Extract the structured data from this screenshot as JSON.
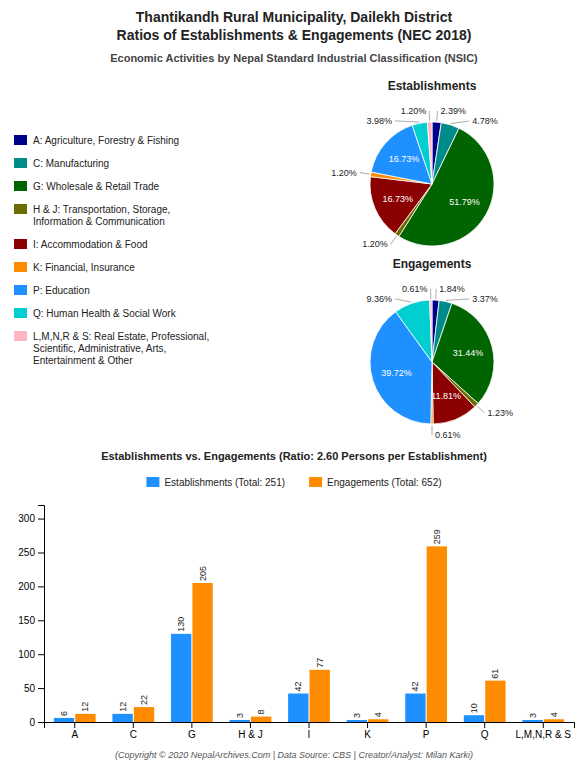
{
  "title": "Thantikandh Rural Municipality, Dailekh District\nRatios of Establishments & Engagements (NEC 2018)",
  "subtitle": "Economic Activities by Nepal Standard Industrial Classification (NSIC)",
  "footer": "(Copyright © 2020 NepalArchives.Com | Data Source: CBS | Creator/Analyst: Milan Karki)",
  "chart_data": [
    {
      "type": "pie",
      "title": "Establishments",
      "categories": [
        "A: Agriculture, Forestry & Fishing",
        "C: Manufacturing",
        "G: Wholesale & Retail Trade",
        "H & J: Transportation, Storage,\nInformation & Communication",
        "I: Accommodation & Food",
        "K: Financial, Insurance",
        "P: Education",
        "Q: Human Health & Social Work",
        "L,M,N,R & S: Real Estate, Professional,\nScientific, Administrative, Arts,\nEntertainment & Other"
      ],
      "values": [
        2.39,
        4.78,
        51.79,
        1.2,
        16.73,
        1.2,
        16.73,
        3.98,
        1.2
      ],
      "value_labels": [
        "2.39%",
        "4.78%",
        "51.79%",
        "1.20%",
        "16.73%",
        "1.20%",
        "16.73%",
        "3.98%",
        "1.20%"
      ],
      "colors": [
        "#00008B",
        "#008B8B",
        "#006400",
        "#6B6B00",
        "#8B0000",
        "#FF8C00",
        "#1E90FF",
        "#00CED1",
        "#FFB6C1"
      ],
      "data_labels": true,
      "legend": "left"
    },
    {
      "type": "pie",
      "title": "Engagements",
      "categories": [
        "A: Agriculture, Forestry & Fishing",
        "C: Manufacturing",
        "G: Wholesale & Retail Trade",
        "H & J: Transportation, Storage,\nInformation & Communication",
        "I: Accommodation & Food",
        "K: Financial, Insurance",
        "P: Education",
        "Q: Human Health & Social Work",
        "L,M,N,R & S: Real Estate, Professional,\nScientific, Administrative, Arts,\nEntertainment & Other"
      ],
      "values": [
        1.84,
        3.37,
        31.44,
        1.23,
        11.81,
        0.61,
        39.72,
        9.36,
        0.61
      ],
      "value_labels": [
        "1.84%",
        "3.37%",
        "31.44%",
        "1.23%",
        "11.81%",
        "0.61%",
        "39.72%",
        "9.36%",
        "0.61%"
      ],
      "colors": [
        "#00008B",
        "#008B8B",
        "#006400",
        "#6B6B00",
        "#8B0000",
        "#FF8C00",
        "#1E90FF",
        "#00CED1",
        "#FFB6C1"
      ],
      "data_labels": true
    },
    {
      "type": "bar",
      "title": "Establishments vs. Engagements (Ratio: 2.60 Persons per Establishment)",
      "categories": [
        "A",
        "C",
        "G",
        "H & J",
        "I",
        "K",
        "P",
        "Q",
        "L,M,N,R & S"
      ],
      "series": [
        {
          "name": "Establishments (Total: 251)",
          "color": "#1E90FF",
          "values": [
            6,
            12,
            130,
            3,
            42,
            3,
            42,
            10,
            3
          ]
        },
        {
          "name": "Engagements (Total: 652)",
          "color": "#FF8C00",
          "values": [
            12,
            22,
            205,
            8,
            77,
            4,
            259,
            61,
            4
          ]
        }
      ],
      "ylim": [
        0,
        320
      ],
      "yticks": [
        0,
        50,
        100,
        150,
        200,
        250,
        300
      ],
      "grid": false,
      "data_labels": true,
      "legend": "top"
    }
  ]
}
